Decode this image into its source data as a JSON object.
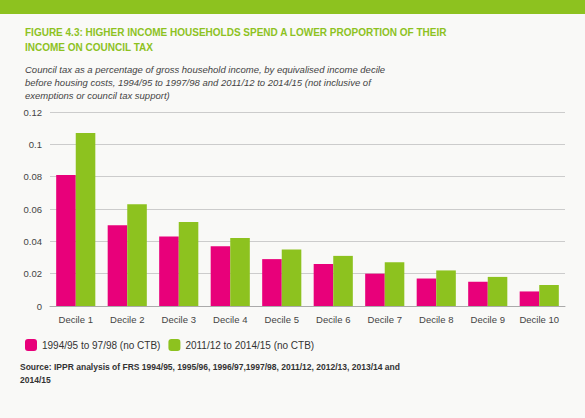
{
  "chart_data": {
    "type": "bar",
    "title": "FIGURE 4.3: HIGHER INCOME HOUSEHOLDS SPEND A LOWER PROPORTION OF THEIR\nINCOME ON COUNCIL TAX",
    "subtitle": "Council tax as a percentage of gross household income, by equivalised income decile\nbefore housing costs, 1994/95 to 1997/98 and 2011/12 to 2014/15 (not inclusive of\nexemptions or council tax support)",
    "annotations": [
      "Source: IPPR analysis of FRS 1994/95, 1995/96, 1996/97,1997/98, 2011/12, 2012/13, 2013/14 and\n2014/15"
    ],
    "categories": [
      "Decile 1",
      "Decile 2",
      "Decile 3",
      "Decile 4",
      "Decile 5",
      "Decile 6",
      "Decile 7",
      "Decile 8",
      "Decile 9",
      "Decile 10"
    ],
    "series": [
      {
        "name": "1994/95 to 97/98 (no CTB)",
        "color": "#e8007a",
        "values": [
          0.081,
          0.05,
          0.043,
          0.037,
          0.029,
          0.026,
          0.02,
          0.017,
          0.015,
          0.009
        ]
      },
      {
        "name": "2011/12 to 2014/15 (no CTB)",
        "color": "#8dc21f",
        "values": [
          0.107,
          0.063,
          0.052,
          0.042,
          0.035,
          0.031,
          0.027,
          0.022,
          0.018,
          0.013
        ]
      }
    ],
    "ylim": [
      0,
      0.12
    ],
    "yticks": [
      0,
      0.02,
      0.04,
      0.06,
      0.08,
      0.1,
      0.12
    ],
    "grid": true,
    "legend": "bottom"
  }
}
